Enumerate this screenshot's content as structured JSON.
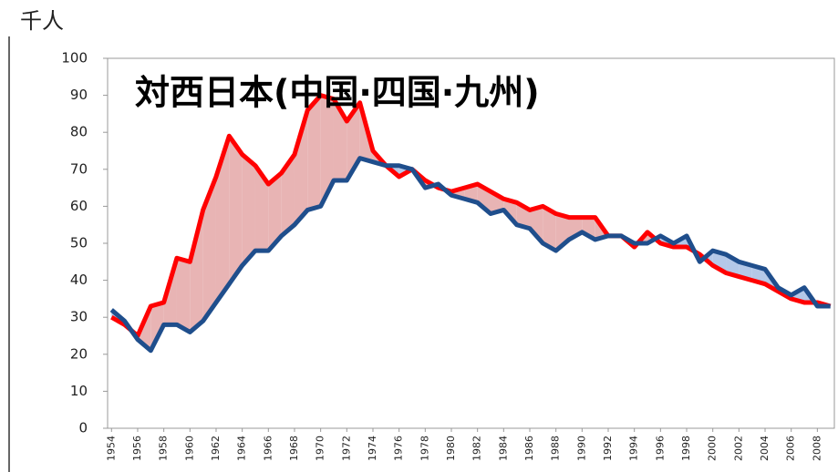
{
  "chart_data": {
    "type": "line",
    "title": "対西日本(中国·四国·九州)",
    "y_label": "千人",
    "x": [
      1954,
      1955,
      1956,
      1957,
      1958,
      1959,
      1960,
      1961,
      1962,
      1963,
      1964,
      1965,
      1966,
      1967,
      1968,
      1969,
      1970,
      1971,
      1972,
      1973,
      1974,
      1975,
      1976,
      1977,
      1978,
      1979,
      1980,
      1981,
      1982,
      1983,
      1984,
      1985,
      1986,
      1987,
      1988,
      1989,
      1990,
      1991,
      1992,
      1993,
      1994,
      1995,
      1996,
      1997,
      1998,
      1999,
      2000,
      2001,
      2002,
      2003,
      2004,
      2005,
      2006,
      2007,
      2008,
      2009
    ],
    "series": [
      {
        "color": "#ff0000",
        "values": [
          30,
          28,
          25,
          33,
          34,
          46,
          45,
          59,
          68,
          79,
          74,
          71,
          66,
          69,
          74,
          86,
          90,
          89,
          83,
          88,
          75,
          71,
          68,
          70,
          67,
          65,
          64,
          65,
          66,
          64,
          62,
          61,
          59,
          60,
          58,
          57,
          57,
          57,
          52,
          52,
          49,
          53,
          50,
          49,
          49,
          47,
          44,
          42,
          41,
          40,
          39,
          37,
          35,
          34,
          34,
          33
        ]
      },
      {
        "color": "#1f4e8c",
        "values": [
          32,
          29,
          24,
          21,
          28,
          28,
          26,
          29,
          34,
          39,
          44,
          48,
          48,
          52,
          55,
          59,
          60,
          67,
          67,
          73,
          72,
          71,
          71,
          70,
          65,
          66,
          63,
          62,
          61,
          58,
          59,
          55,
          54,
          50,
          48,
          51,
          53,
          51,
          52,
          52,
          50,
          50,
          52,
          50,
          52,
          45,
          48,
          47,
          45,
          44,
          43,
          38,
          36,
          38,
          33,
          33
        ]
      }
    ],
    "xlim": [
      1953.7,
      2009.3
    ],
    "xticks": [
      1954,
      1956,
      1958,
      1960,
      1962,
      1964,
      1966,
      1968,
      1970,
      1972,
      1974,
      1976,
      1978,
      1980,
      1982,
      1984,
      1986,
      1988,
      1990,
      1992,
      1994,
      1996,
      1998,
      2000,
      2002,
      2004,
      2006,
      2008
    ],
    "ylim": [
      0,
      100
    ],
    "yticks": [
      0,
      10,
      20,
      30,
      40,
      50,
      60,
      70,
      80,
      90,
      100
    ],
    "grid": false
  }
}
